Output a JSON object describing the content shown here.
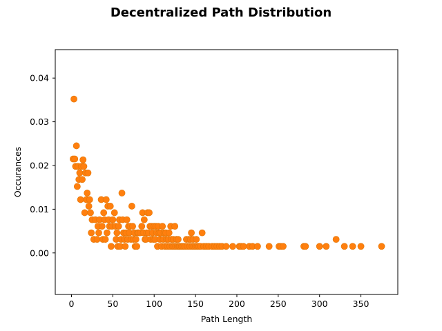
{
  "chart_data": {
    "type": "scatter",
    "title": "Decentralized Path Distribution",
    "xlabel": "Path Length",
    "ylabel": "Occurances",
    "xlim": [
      -19.6,
      394.6
    ],
    "ylim": [
      -0.0095,
      0.0465
    ],
    "xticks": [
      0,
      50,
      100,
      150,
      200,
      250,
      300,
      350
    ],
    "yticks": [
      0.0,
      0.01,
      0.02,
      0.03,
      0.04
    ],
    "ytick_labels": [
      "0.00",
      "0.01",
      "0.02",
      "0.03",
      "0.04"
    ],
    "grid": false,
    "legend": "none",
    "series": [
      {
        "color": "#ff7f0e",
        "marker_stroke": "#e0780a",
        "points": [
          [
            3,
            0.0352
          ],
          [
            2,
            0.0215
          ],
          [
            4,
            0.0215
          ],
          [
            5,
            0.0198
          ],
          [
            6,
            0.0245
          ],
          [
            7,
            0.0152
          ],
          [
            8,
            0.0198
          ],
          [
            9,
            0.0168
          ],
          [
            10,
            0.0183
          ],
          [
            11,
            0.0122
          ],
          [
            12,
            0.0198
          ],
          [
            13,
            0.0168
          ],
          [
            14,
            0.0213
          ],
          [
            15,
            0.0198
          ],
          [
            16,
            0.0092
          ],
          [
            17,
            0.0183
          ],
          [
            18,
            0.0122
          ],
          [
            19,
            0.0137
          ],
          [
            20,
            0.0183
          ],
          [
            21,
            0.0107
          ],
          [
            22,
            0.0122
          ],
          [
            23,
            0.0092
          ],
          [
            24,
            0.0046
          ],
          [
            25,
            0.0076
          ],
          [
            27,
            0.0031
          ],
          [
            29,
            0.0076
          ],
          [
            31,
            0.0031
          ],
          [
            32,
            0.0061
          ],
          [
            33,
            0.0046
          ],
          [
            34,
            0.0076
          ],
          [
            36,
            0.0122
          ],
          [
            37,
            0.0061
          ],
          [
            38,
            0.0031
          ],
          [
            39,
            0.0092
          ],
          [
            40,
            0.0076
          ],
          [
            41,
            0.0031
          ],
          [
            42,
            0.0122
          ],
          [
            43,
            0.0046
          ],
          [
            44,
            0.0107
          ],
          [
            45,
            0.0076
          ],
          [
            46,
            0.0061
          ],
          [
            47,
            0.0107
          ],
          [
            48,
            0.0015
          ],
          [
            49,
            0.0061
          ],
          [
            50,
            0.0076
          ],
          [
            52,
            0.0092
          ],
          [
            53,
            0.0061
          ],
          [
            54,
            0.0031
          ],
          [
            55,
            0.0046
          ],
          [
            56,
            0.0015
          ],
          [
            57,
            0.0061
          ],
          [
            58,
            0.0076
          ],
          [
            59,
            0.0015
          ],
          [
            60,
            0.0031
          ],
          [
            61,
            0.0137
          ],
          [
            62,
            0.0076
          ],
          [
            63,
            0.0046
          ],
          [
            64,
            0.0031
          ],
          [
            65,
            0.0015
          ],
          [
            66,
            0.0046
          ],
          [
            67,
            0.0076
          ],
          [
            68,
            0.0031
          ],
          [
            69,
            0.0061
          ],
          [
            70,
            0.0046
          ],
          [
            71,
            0.0061
          ],
          [
            72,
            0.0031
          ],
          [
            73,
            0.0107
          ],
          [
            74,
            0.0061
          ],
          [
            75,
            0.0031
          ],
          [
            76,
            0.0046
          ],
          [
            77,
            0.0015
          ],
          [
            78,
            0.0031
          ],
          [
            79,
            0.0015
          ],
          [
            80,
            0.0046
          ],
          [
            81,
            0.0046
          ],
          [
            83,
            0.0046
          ],
          [
            85,
            0.0061
          ],
          [
            86,
            0.0092
          ],
          [
            87,
            0.0046
          ],
          [
            88,
            0.0076
          ],
          [
            89,
            0.0031
          ],
          [
            90,
            0.0031
          ],
          [
            91,
            0.0046
          ],
          [
            92,
            0.0092
          ],
          [
            93,
            0.0046
          ],
          [
            94,
            0.0092
          ],
          [
            95,
            0.0061
          ],
          [
            96,
            0.0031
          ],
          [
            97,
            0.0061
          ],
          [
            98,
            0.0046
          ],
          [
            99,
            0.0031
          ],
          [
            100,
            0.0061
          ],
          [
            101,
            0.0031
          ],
          [
            102,
            0.0061
          ],
          [
            103,
            0.0046
          ],
          [
            104,
            0.0015
          ],
          [
            105,
            0.0061
          ],
          [
            106,
            0.0046
          ],
          [
            107,
            0.0031
          ],
          [
            108,
            0.0046
          ],
          [
            109,
            0.0015
          ],
          [
            110,
            0.0061
          ],
          [
            111,
            0.0031
          ],
          [
            112,
            0.0046
          ],
          [
            113,
            0.0015
          ],
          [
            114,
            0.0046
          ],
          [
            115,
            0.0031
          ],
          [
            116,
            0.0015
          ],
          [
            117,
            0.0031
          ],
          [
            118,
            0.0046
          ],
          [
            119,
            0.0015
          ],
          [
            120,
            0.0061
          ],
          [
            121,
            0.0031
          ],
          [
            122,
            0.0015
          ],
          [
            123,
            0.0031
          ],
          [
            124,
            0.0015
          ],
          [
            125,
            0.0061
          ],
          [
            126,
            0.0015
          ],
          [
            127,
            0.0031
          ],
          [
            128,
            0.0015
          ],
          [
            129,
            0.0031
          ],
          [
            130,
            0.0015
          ],
          [
            131,
            0.0015
          ],
          [
            133,
            0.0015
          ],
          [
            135,
            0.0015
          ],
          [
            137,
            0.0015
          ],
          [
            139,
            0.0031
          ],
          [
            140,
            0.0015
          ],
          [
            142,
            0.0031
          ],
          [
            143,
            0.0015
          ],
          [
            144,
            0.0031
          ],
          [
            145,
            0.0046
          ],
          [
            146,
            0.0015
          ],
          [
            147,
            0.0031
          ],
          [
            148,
            0.0015
          ],
          [
            150,
            0.0015
          ],
          [
            151,
            0.0031
          ],
          [
            152,
            0.0015
          ],
          [
            154,
            0.0015
          ],
          [
            156,
            0.0015
          ],
          [
            158,
            0.0046
          ],
          [
            160,
            0.0015
          ],
          [
            163,
            0.0015
          ],
          [
            166,
            0.0015
          ],
          [
            170,
            0.0015
          ],
          [
            173,
            0.0015
          ],
          [
            176,
            0.0015
          ],
          [
            179,
            0.0015
          ],
          [
            182,
            0.0015
          ],
          [
            187,
            0.0015
          ],
          [
            195,
            0.0015
          ],
          [
            203,
            0.0015
          ],
          [
            205,
            0.0015
          ],
          [
            208,
            0.0015
          ],
          [
            215,
            0.0015
          ],
          [
            219,
            0.0015
          ],
          [
            225,
            0.0015
          ],
          [
            239,
            0.0015
          ],
          [
            251,
            0.0015
          ],
          [
            253,
            0.0015
          ],
          [
            256,
            0.0015
          ],
          [
            281,
            0.0015
          ],
          [
            283,
            0.0015
          ],
          [
            300,
            0.0015
          ],
          [
            308,
            0.0015
          ],
          [
            320,
            0.0031
          ],
          [
            330,
            0.0015
          ],
          [
            340,
            0.0015
          ],
          [
            350,
            0.0015
          ],
          [
            375,
            0.0015
          ]
        ]
      }
    ]
  }
}
